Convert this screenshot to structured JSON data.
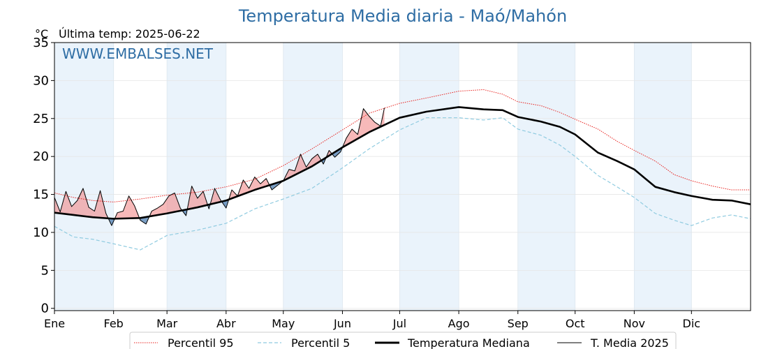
{
  "chart_data": {
    "type": "line",
    "title": "Temperatura Media diaria - Maó/Mahón",
    "unit_label": "°C",
    "last_temp_label": "Última temp: 2025-06-22",
    "watermark": "WWW.EMBALSES.NET",
    "xlim": [
      0,
      365
    ],
    "ylim": [
      -0.3,
      35
    ],
    "yticks": [
      0,
      5,
      10,
      15,
      20,
      25,
      30,
      35
    ],
    "month_labels": [
      "Ene",
      "Feb",
      "Mar",
      "Abr",
      "May",
      "Jun",
      "Jul",
      "Ago",
      "Sep",
      "Oct",
      "Nov",
      "Dic"
    ],
    "month_start_days": [
      0,
      31,
      59,
      90,
      120,
      151,
      181,
      212,
      243,
      273,
      304,
      334
    ],
    "shaded_months": [
      0,
      2,
      4,
      6,
      8,
      10
    ],
    "grid": true,
    "legend_position": "bottom",
    "colors": {
      "title": "#2e6da4",
      "watermark": "#2e6da4",
      "p95": "#e8231f",
      "p5": "#8fcbe0",
      "median": "#000000",
      "current": "#000000",
      "above_fill": "#f08080",
      "below_fill": "#4f7fb1",
      "month_shade": "#eaf3fb"
    },
    "series": [
      {
        "name": "Percentil 95",
        "style": "dotted-red",
        "points": [
          [
            0,
            15.2
          ],
          [
            10,
            14.6
          ],
          [
            20,
            14.2
          ],
          [
            31,
            14.0
          ],
          [
            45,
            14.4
          ],
          [
            59,
            14.9
          ],
          [
            75,
            15.3
          ],
          [
            90,
            16.0
          ],
          [
            105,
            17.0
          ],
          [
            120,
            18.8
          ],
          [
            135,
            21.0
          ],
          [
            151,
            23.5
          ],
          [
            165,
            25.7
          ],
          [
            181,
            27.0
          ],
          [
            195,
            27.7
          ],
          [
            212,
            28.6
          ],
          [
            225,
            28.8
          ],
          [
            235,
            28.2
          ],
          [
            243,
            27.2
          ],
          [
            255,
            26.7
          ],
          [
            265,
            25.8
          ],
          [
            273,
            24.9
          ],
          [
            285,
            23.6
          ],
          [
            295,
            22.0
          ],
          [
            304,
            20.8
          ],
          [
            315,
            19.4
          ],
          [
            325,
            17.6
          ],
          [
            334,
            16.8
          ],
          [
            345,
            16.1
          ],
          [
            355,
            15.6
          ],
          [
            365,
            15.6
          ]
        ]
      },
      {
        "name": "Percentil 5",
        "style": "dashed-lightblue",
        "points": [
          [
            0,
            10.8
          ],
          [
            10,
            9.4
          ],
          [
            20,
            9.1
          ],
          [
            31,
            8.5
          ],
          [
            45,
            7.7
          ],
          [
            59,
            9.6
          ],
          [
            75,
            10.3
          ],
          [
            90,
            11.2
          ],
          [
            105,
            13.1
          ],
          [
            120,
            14.4
          ],
          [
            135,
            15.8
          ],
          [
            151,
            18.5
          ],
          [
            165,
            21.0
          ],
          [
            181,
            23.5
          ],
          [
            195,
            25.1
          ],
          [
            212,
            25.1
          ],
          [
            225,
            24.8
          ],
          [
            235,
            25.1
          ],
          [
            243,
            23.6
          ],
          [
            255,
            22.8
          ],
          [
            265,
            21.5
          ],
          [
            273,
            20.0
          ],
          [
            285,
            17.5
          ],
          [
            295,
            16.0
          ],
          [
            304,
            14.6
          ],
          [
            315,
            12.5
          ],
          [
            325,
            11.6
          ],
          [
            334,
            10.9
          ],
          [
            345,
            11.9
          ],
          [
            355,
            12.3
          ],
          [
            365,
            11.8
          ]
        ]
      },
      {
        "name": "Temperatura Mediana",
        "style": "thick-black",
        "points": [
          [
            0,
            12.6
          ],
          [
            10,
            12.3
          ],
          [
            20,
            12.0
          ],
          [
            31,
            11.8
          ],
          [
            45,
            11.9
          ],
          [
            59,
            12.5
          ],
          [
            75,
            13.3
          ],
          [
            90,
            14.2
          ],
          [
            105,
            15.6
          ],
          [
            120,
            16.8
          ],
          [
            135,
            18.7
          ],
          [
            151,
            21.2
          ],
          [
            165,
            23.2
          ],
          [
            181,
            25.1
          ],
          [
            195,
            25.9
          ],
          [
            212,
            26.5
          ],
          [
            225,
            26.2
          ],
          [
            235,
            26.1
          ],
          [
            243,
            25.2
          ],
          [
            255,
            24.6
          ],
          [
            265,
            23.9
          ],
          [
            273,
            22.9
          ],
          [
            285,
            20.5
          ],
          [
            295,
            19.4
          ],
          [
            304,
            18.3
          ],
          [
            315,
            16.0
          ],
          [
            325,
            15.3
          ],
          [
            334,
            14.8
          ],
          [
            345,
            14.3
          ],
          [
            355,
            14.2
          ],
          [
            365,
            13.7
          ]
        ]
      },
      {
        "name": "T. Media 2025",
        "style": "thin-black",
        "points": [
          [
            0,
            14.6
          ],
          [
            3,
            12.7
          ],
          [
            6,
            15.4
          ],
          [
            9,
            13.4
          ],
          [
            12,
            14.2
          ],
          [
            15,
            15.8
          ],
          [
            18,
            13.3
          ],
          [
            21,
            12.8
          ],
          [
            24,
            15.5
          ],
          [
            27,
            12.5
          ],
          [
            30,
            10.9
          ],
          [
            33,
            12.6
          ],
          [
            36,
            12.8
          ],
          [
            39,
            14.8
          ],
          [
            42,
            13.5
          ],
          [
            45,
            11.6
          ],
          [
            48,
            11.1
          ],
          [
            51,
            12.8
          ],
          [
            54,
            13.2
          ],
          [
            57,
            13.7
          ],
          [
            60,
            14.8
          ],
          [
            63,
            15.2
          ],
          [
            66,
            13.2
          ],
          [
            69,
            12.2
          ],
          [
            72,
            16.1
          ],
          [
            75,
            14.5
          ],
          [
            78,
            15.4
          ],
          [
            81,
            13.1
          ],
          [
            84,
            15.8
          ],
          [
            87,
            14.3
          ],
          [
            90,
            13.2
          ],
          [
            93,
            15.6
          ],
          [
            96,
            14.8
          ],
          [
            99,
            16.9
          ],
          [
            102,
            15.8
          ],
          [
            105,
            17.3
          ],
          [
            108,
            16.4
          ],
          [
            111,
            17.1
          ],
          [
            114,
            15.6
          ],
          [
            117,
            16.2
          ],
          [
            120,
            16.8
          ],
          [
            123,
            18.3
          ],
          [
            126,
            18.1
          ],
          [
            129,
            20.3
          ],
          [
            132,
            18.6
          ],
          [
            135,
            19.7
          ],
          [
            138,
            20.3
          ],
          [
            141,
            19.0
          ],
          [
            144,
            20.8
          ],
          [
            147,
            19.9
          ],
          [
            150,
            20.6
          ],
          [
            153,
            22.4
          ],
          [
            156,
            23.6
          ],
          [
            159,
            22.9
          ],
          [
            162,
            26.3
          ],
          [
            165,
            25.3
          ],
          [
            168,
            24.5
          ],
          [
            171,
            24.0
          ],
          [
            173,
            26.4
          ]
        ]
      }
    ]
  },
  "legend": {
    "items": [
      "Percentil 95",
      "Percentil 5",
      "Temperatura Mediana",
      "T. Media 2025"
    ]
  }
}
